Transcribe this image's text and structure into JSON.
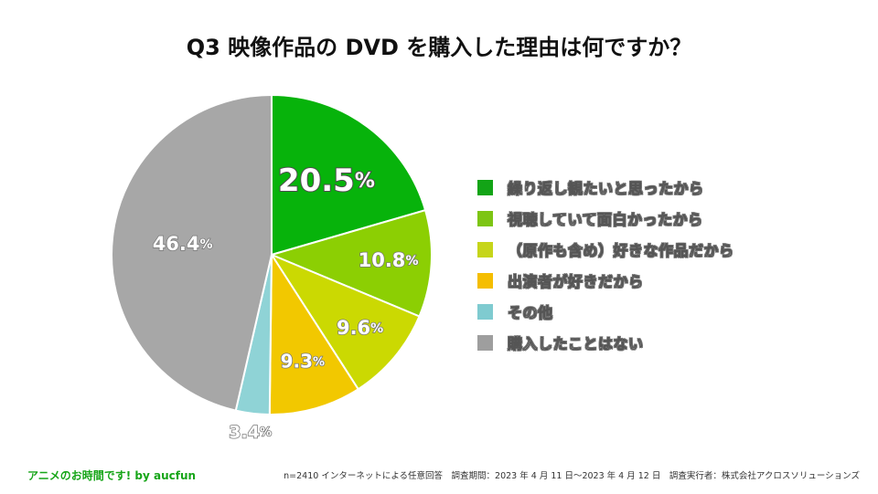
{
  "chart_data": {
    "type": "pie",
    "title": "Q3 映像作品の DVD を購入した理由は何ですか？",
    "unit": "%",
    "slices": [
      {
        "label": "繰り返し観たいと思ったから",
        "value": 20.5,
        "display": "20.5",
        "color": "#07b30b",
        "swatch": "#12a416"
      },
      {
        "label": "視聴していて面白かったから",
        "value": 10.8,
        "display": "10.8",
        "color": "#8ccf03",
        "swatch": "#7dc513"
      },
      {
        "label": "（原作も含め）好きな作品だから",
        "value": 9.6,
        "display": "9.6",
        "color": "#cbd902",
        "swatch": "#c6d51a"
      },
      {
        "label": "出演者が好きだから",
        "value": 9.3,
        "display": "9.3",
        "color": "#f2c800",
        "swatch": "#f5be00"
      },
      {
        "label": "その他",
        "value": 3.4,
        "display": "3.4",
        "color": "#8fd3d6",
        "swatch": "#7fcbd0"
      },
      {
        "label": "購入したことはない",
        "value": 46.4,
        "display": "46.4",
        "color": "#a7a7a7",
        "swatch": "#9e9e9e"
      }
    ],
    "legend_position": "right"
  },
  "footer": {
    "brand": "アニメのお時間です! by aucfun",
    "survey_note": "n=2410 インターネットによる任意回答　調査期間：2023 年 4 月 11 日〜2023 年 4 月 12 日　調査実行者：株式会社アクロスソリューションズ"
  }
}
